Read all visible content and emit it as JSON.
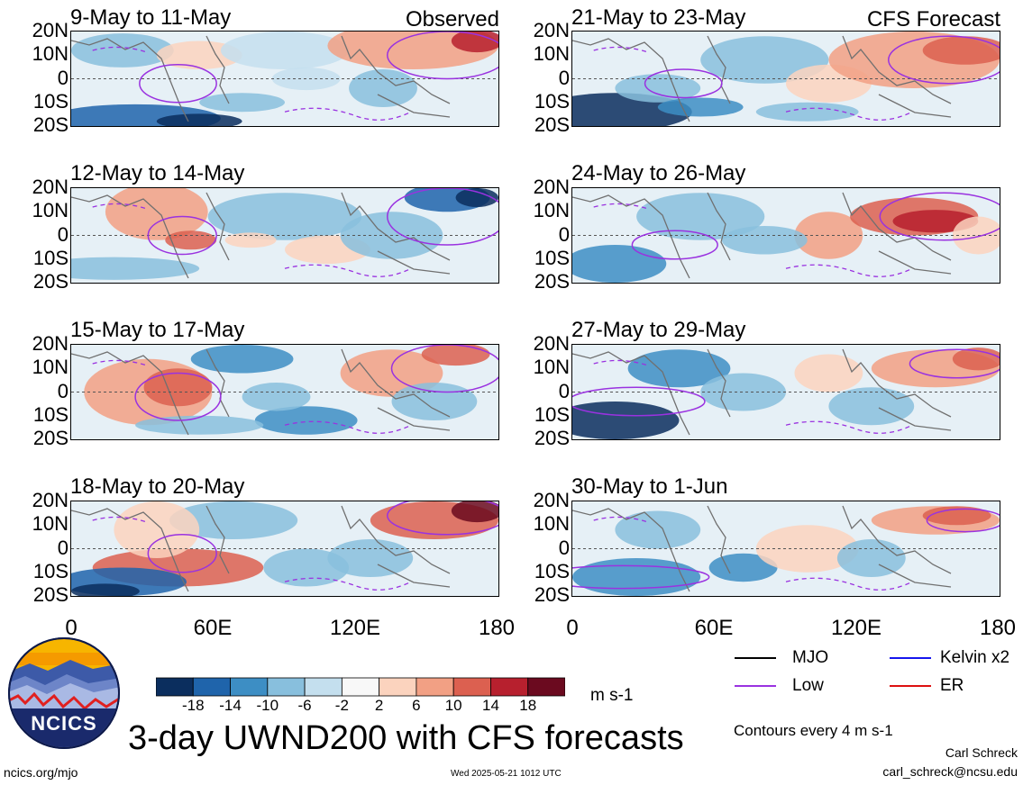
{
  "labels": {
    "observed": "Observed",
    "forecast": "CFS Forecast",
    "title": "3-day UWND200 with CFS forecasts",
    "units": "m s-1",
    "contours": "Contours every 4 m s-1",
    "author": "Carl Schreck",
    "email": "carl_schreck@ncsu.edu",
    "site": "ncics.org/mjo",
    "timestamp": "Wed 2025-05-21 1012 UTC",
    "logo_text": "NCICS"
  },
  "chart_data": {
    "type": "heatmap",
    "title": "3-day UWND200 with CFS forecasts",
    "units": "m s-1",
    "x_ticks": [
      "0",
      "60E",
      "120E",
      "180"
    ],
    "y_ticks": [
      "20N",
      "10N",
      "0",
      "10S",
      "20S"
    ],
    "xlim": [
      0,
      180
    ],
    "ylim": [
      -20,
      20
    ],
    "colorbar": {
      "levels": [
        "-18",
        "-14",
        "-10",
        "-6",
        "-2",
        "2",
        "6",
        "10",
        "14",
        "18"
      ],
      "colors": [
        "#0b2e5e",
        "#1f64ab",
        "#3d8ec4",
        "#88bfdd",
        "#c4dfee",
        "#f8f8f8",
        "#fbd3be",
        "#f2a084",
        "#dc6050",
        "#b7202e",
        "#6b0a1f"
      ]
    },
    "legend": [
      {
        "name": "MJO",
        "color": "#000000"
      },
      {
        "name": "Kelvin x2",
        "color": "#1515ee"
      },
      {
        "name": "Low",
        "color": "#9a32e0"
      },
      {
        "name": "ER",
        "color": "#dd1010"
      }
    ],
    "panels": [
      {
        "label": "9-May to 11-May",
        "group": "Observed"
      },
      {
        "label": "12-May to 14-May",
        "group": "Observed"
      },
      {
        "label": "15-May to 17-May",
        "group": "Observed"
      },
      {
        "label": "18-May to 20-May",
        "group": "Observed"
      },
      {
        "label": "21-May to 23-May",
        "group": "CFS Forecast"
      },
      {
        "label": "24-May to 26-May",
        "group": "CFS Forecast"
      },
      {
        "label": "27-May to 29-May",
        "group": "CFS Forecast"
      },
      {
        "label": "30-May to 1-Jun",
        "group": "CFS Forecast"
      }
    ]
  }
}
